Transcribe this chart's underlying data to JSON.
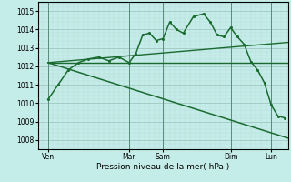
{
  "xlabel": "Pression niveau de la mer( hPa )",
  "bg_color": "#c4ece8",
  "grid_major_color": "#9abfbb",
  "grid_minor_color": "#b8dcd8",
  "line_color": "#1a6b30",
  "vline_color": "#5a8a7a",
  "ylim": [
    1007.5,
    1015.5
  ],
  "xlim": [
    0.0,
    37.0
  ],
  "yticks": [
    1008,
    1009,
    1010,
    1011,
    1012,
    1013,
    1014,
    1015
  ],
  "xtick_positions": [
    1.5,
    13.5,
    18.5,
    28.5,
    34.5
  ],
  "xtick_labels": [
    "Ven",
    "Mar",
    "Sam",
    "Dim",
    "Lun"
  ],
  "vlines": [
    1.5,
    13.5,
    18.5,
    28.5,
    34.5
  ],
  "series": [
    {
      "x": [
        1.5,
        3,
        4.5,
        6,
        7.5,
        9,
        10.5,
        12,
        13.5,
        14.5,
        15.5,
        16.5,
        17.5,
        18.5,
        19.5,
        20.5,
        21.5,
        23,
        24.5,
        25.5,
        26.5,
        27.5,
        28.5,
        29.5,
        30.5,
        31.5,
        32.5,
        33.5,
        34.5,
        35.5,
        36.5
      ],
      "y": [
        1010.2,
        1011.0,
        1011.8,
        1012.2,
        1012.4,
        1012.5,
        1012.3,
        1012.5,
        1012.2,
        1012.7,
        1013.7,
        1013.8,
        1013.4,
        1013.5,
        1014.4,
        1014.0,
        1013.8,
        1014.7,
        1014.85,
        1014.4,
        1013.7,
        1013.6,
        1014.1,
        1013.6,
        1013.2,
        1012.25,
        1011.8,
        1011.1,
        1009.9,
        1009.3,
        1009.2
      ],
      "style": "o",
      "linewidth": 1.1,
      "markersize": 2.2,
      "zorder": 5
    },
    {
      "x": [
        1.5,
        37.0
      ],
      "y": [
        1012.2,
        1008.1
      ],
      "style": "",
      "linewidth": 1.1,
      "markersize": 0,
      "zorder": 3
    },
    {
      "x": [
        1.5,
        37.0
      ],
      "y": [
        1012.2,
        1012.2
      ],
      "style": "",
      "linewidth": 1.0,
      "markersize": 0,
      "zorder": 3
    },
    {
      "x": [
        1.5,
        37.0
      ],
      "y": [
        1012.2,
        1013.3
      ],
      "style": "",
      "linewidth": 1.0,
      "markersize": 0,
      "zorder": 3
    }
  ]
}
